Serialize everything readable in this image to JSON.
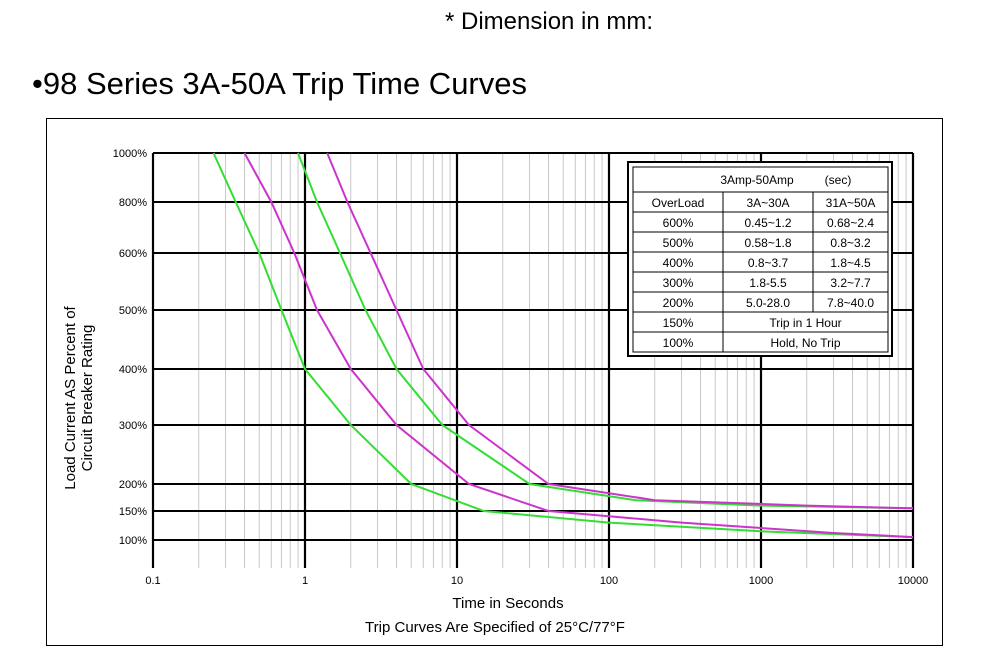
{
  "header": {
    "dimension_note": "* Dimension in mm:",
    "title": "•98 Series 3A-50A Trip Time Curves"
  },
  "chart_data": {
    "type": "line",
    "xscale": "log",
    "xlim": [
      0.1,
      10000
    ],
    "xticks": [
      "0.1",
      "1",
      "10",
      "100",
      "1000",
      "10000"
    ],
    "xlabel": "Time in Seconds",
    "ylabel": [
      "Load Current AS Percent of",
      "Circuit Breaker Rating"
    ],
    "yticks": [
      "1000%",
      "800%",
      "600%",
      "500%",
      "400%",
      "300%",
      "200%",
      "150%",
      "100%"
    ],
    "caption": "Trip Curves Are Specified of 25°C/77°F",
    "grid": true,
    "colors": {
      "green": "#33dd33",
      "magenta": "#cc33cc"
    },
    "series": [
      {
        "color": "green",
        "points": [
          [
            0.25,
            1000
          ],
          [
            0.35,
            800
          ],
          [
            0.5,
            600
          ],
          [
            0.7,
            500
          ],
          [
            1.0,
            400
          ],
          [
            2.0,
            300
          ],
          [
            5.0,
            200
          ],
          [
            15,
            150
          ],
          [
            100,
            130
          ],
          [
            1000,
            115
          ],
          [
            10000,
            105
          ]
        ]
      },
      {
        "color": "magenta",
        "points": [
          [
            0.4,
            1000
          ],
          [
            0.6,
            800
          ],
          [
            0.85,
            600
          ],
          [
            1.2,
            500
          ],
          [
            2.0,
            400
          ],
          [
            4.0,
            300
          ],
          [
            12,
            200
          ],
          [
            40,
            150
          ],
          [
            300,
            130
          ],
          [
            3000,
            112
          ],
          [
            10000,
            105
          ]
        ]
      },
      {
        "color": "green",
        "points": [
          [
            0.9,
            1000
          ],
          [
            1.2,
            800
          ],
          [
            1.7,
            600
          ],
          [
            2.5,
            500
          ],
          [
            4.0,
            400
          ],
          [
            8.0,
            300
          ],
          [
            30,
            200
          ],
          [
            150,
            170
          ],
          [
            1000,
            160
          ],
          [
            10000,
            155
          ]
        ]
      },
      {
        "color": "magenta",
        "points": [
          [
            1.4,
            1000
          ],
          [
            1.9,
            800
          ],
          [
            2.7,
            600
          ],
          [
            4.0,
            500
          ],
          [
            6.0,
            400
          ],
          [
            12,
            300
          ],
          [
            40,
            200
          ],
          [
            200,
            170
          ],
          [
            2000,
            160
          ],
          [
            10000,
            155
          ]
        ]
      }
    ]
  },
  "table": {
    "title": "3Amp-50Amp",
    "unit": "(sec)",
    "headers": [
      "OverLoad",
      "3A~30A",
      "31A~50A"
    ],
    "rows": [
      [
        "600%",
        "0.45~1.2",
        "0.68~2.4"
      ],
      [
        "500%",
        "0.58~1.8",
        "0.8~3.2"
      ],
      [
        "400%",
        "0.8~3.7",
        "1.8~4.5"
      ],
      [
        "300%",
        "1.8-5.5",
        "3.2~7.7"
      ],
      [
        "200%",
        "5.0-28.0",
        "7.8~40.0"
      ]
    ],
    "span_rows": [
      [
        "150%",
        "Trip in 1 Hour"
      ],
      [
        "100%",
        "Hold, No Trip"
      ]
    ]
  }
}
